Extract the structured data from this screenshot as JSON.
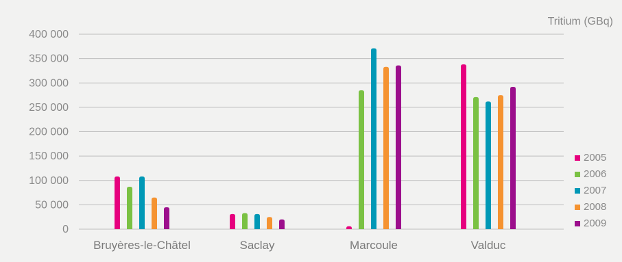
{
  "chart_data": {
    "type": "bar",
    "unit_label": "Tritium (GBq)",
    "categories": [
      "Bruyères-le-Châtel",
      "Saclay",
      "Marcoule",
      "Valduc"
    ],
    "ylim": [
      0,
      400000
    ],
    "y_ticks": [
      0,
      50000,
      100000,
      150000,
      200000,
      250000,
      300000,
      350000,
      400000
    ],
    "y_tick_labels": [
      "0",
      "50 000",
      "100 000",
      "150 000",
      "200 000",
      "250 000",
      "300 000",
      "350 000",
      "400 000"
    ],
    "grid": true,
    "legend_position": "right-bottom",
    "series": [
      {
        "name": "2005",
        "color": "#e6007e",
        "values": [
          108000,
          31000,
          6000,
          338000
        ]
      },
      {
        "name": "2006",
        "color": "#7ac143",
        "values": [
          87000,
          33000,
          285000,
          271000
        ]
      },
      {
        "name": "2007",
        "color": "#0098b6",
        "values": [
          108000,
          31000,
          371000,
          262000
        ]
      },
      {
        "name": "2008",
        "color": "#f59331",
        "values": [
          65000,
          25000,
          333000,
          275000
        ]
      },
      {
        "name": "2009",
        "color": "#9c0f8c",
        "values": [
          45000,
          20000,
          336000,
          292000
        ]
      }
    ]
  }
}
